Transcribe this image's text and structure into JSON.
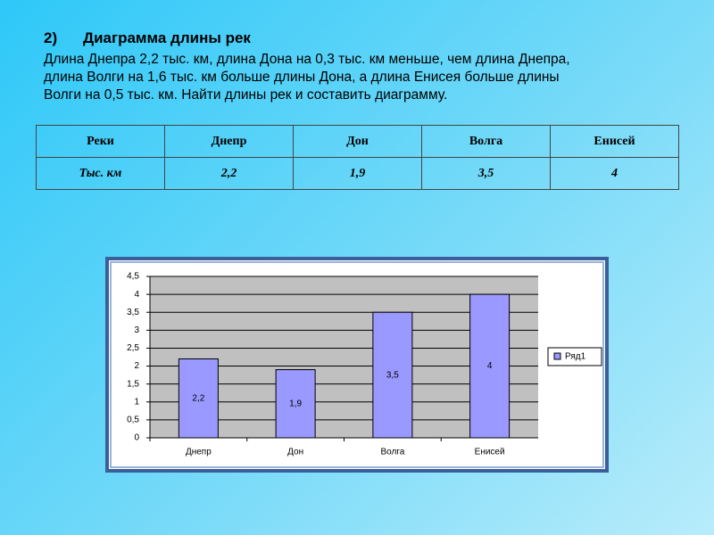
{
  "heading": {
    "number": "2)",
    "title": "Диаграмма длины рек"
  },
  "text": [
    "Длина Днепра 2,2 тыс. км, длина Дона на 0,3 тыс. км меньше, чем длина Днепра,",
    "длина Волги на 1,6 тыс. км больше длины Дона, а длина Енисея больше длины",
    "Волги на 0,5 тыс. км. Найти длины рек и составить диаграмму."
  ],
  "table": {
    "rows": [
      [
        "Реки",
        "Днепр",
        "Дон",
        "Волга",
        "Енисей"
      ],
      [
        "Тыс. км",
        "2,2",
        "1,9",
        "3,5",
        "4"
      ]
    ]
  },
  "chart_data": {
    "type": "bar",
    "categories": [
      "Днепр",
      "Дон",
      "Волга",
      "Енисей"
    ],
    "series": [
      {
        "name": "Ряд1",
        "color": "#9999ff",
        "values": [
          2.2,
          1.9,
          3.5,
          4
        ],
        "value_labels": [
          "2,2",
          "1,9",
          "3,5",
          "4"
        ]
      }
    ],
    "ylim": [
      0,
      4.5
    ],
    "yticks": [
      0,
      {
        "value": 0.5,
        "label": "0,5"
      },
      1,
      {
        "value": 1.5,
        "label": "1,5"
      },
      2,
      {
        "value": 2.5,
        "label": "2,5"
      },
      3,
      {
        "value": 3.5,
        "label": "3,5"
      },
      4,
      {
        "value": 4.5,
        "label": "4,5"
      }
    ],
    "grid": true,
    "legend": "right"
  }
}
